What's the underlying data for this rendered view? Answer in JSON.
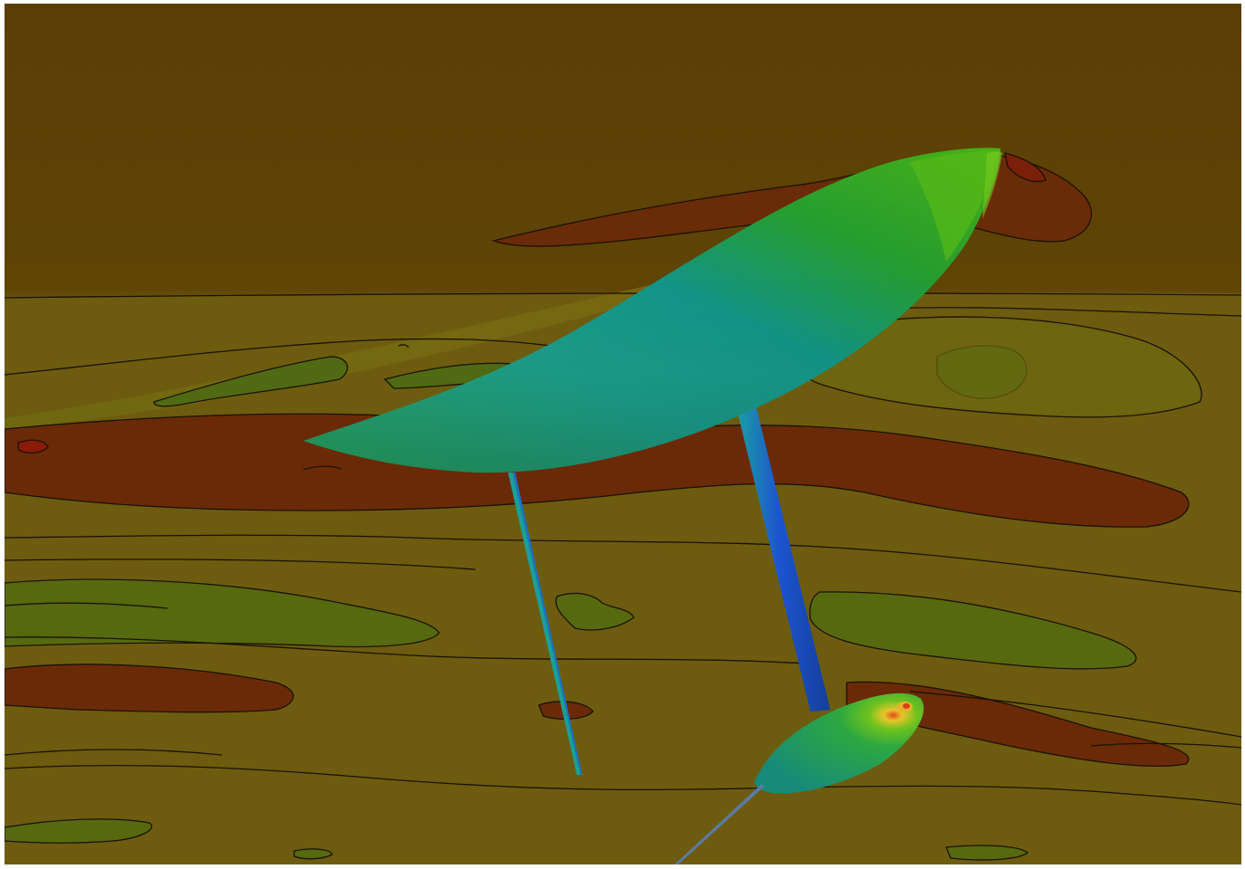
{
  "scene": {
    "kind": "cfd-surface-pressure-contour-render",
    "colors": {
      "frame": "#ffffff",
      "background_top": "#5b3e05",
      "olive": "#6e5a0c",
      "olive_light": "#7b6a12",
      "green_patch": "#4f6a12",
      "red_patch": "#6a2a08",
      "dark_red_patch": "#7a2008",
      "contour_line": "#1a1200",
      "hull_green": "#3aa80a",
      "hull_teal": "#1c9a8a",
      "strut_blue": "#1f5cc4",
      "nacelle_teal": "#1d8a78",
      "hotspot_yellow": "#e5c52a",
      "hotspot_red": "#d83a12"
    },
    "objects": [
      {
        "name": "main-hull",
        "shape": "long curved lifting body"
      },
      {
        "name": "front-strut",
        "shape": "thin strut"
      },
      {
        "name": "rear-strut",
        "shape": "blue strut"
      },
      {
        "name": "nacelle",
        "shape": "pod with hot spot"
      },
      {
        "name": "tail-rod",
        "shape": "thin rod"
      }
    ]
  }
}
